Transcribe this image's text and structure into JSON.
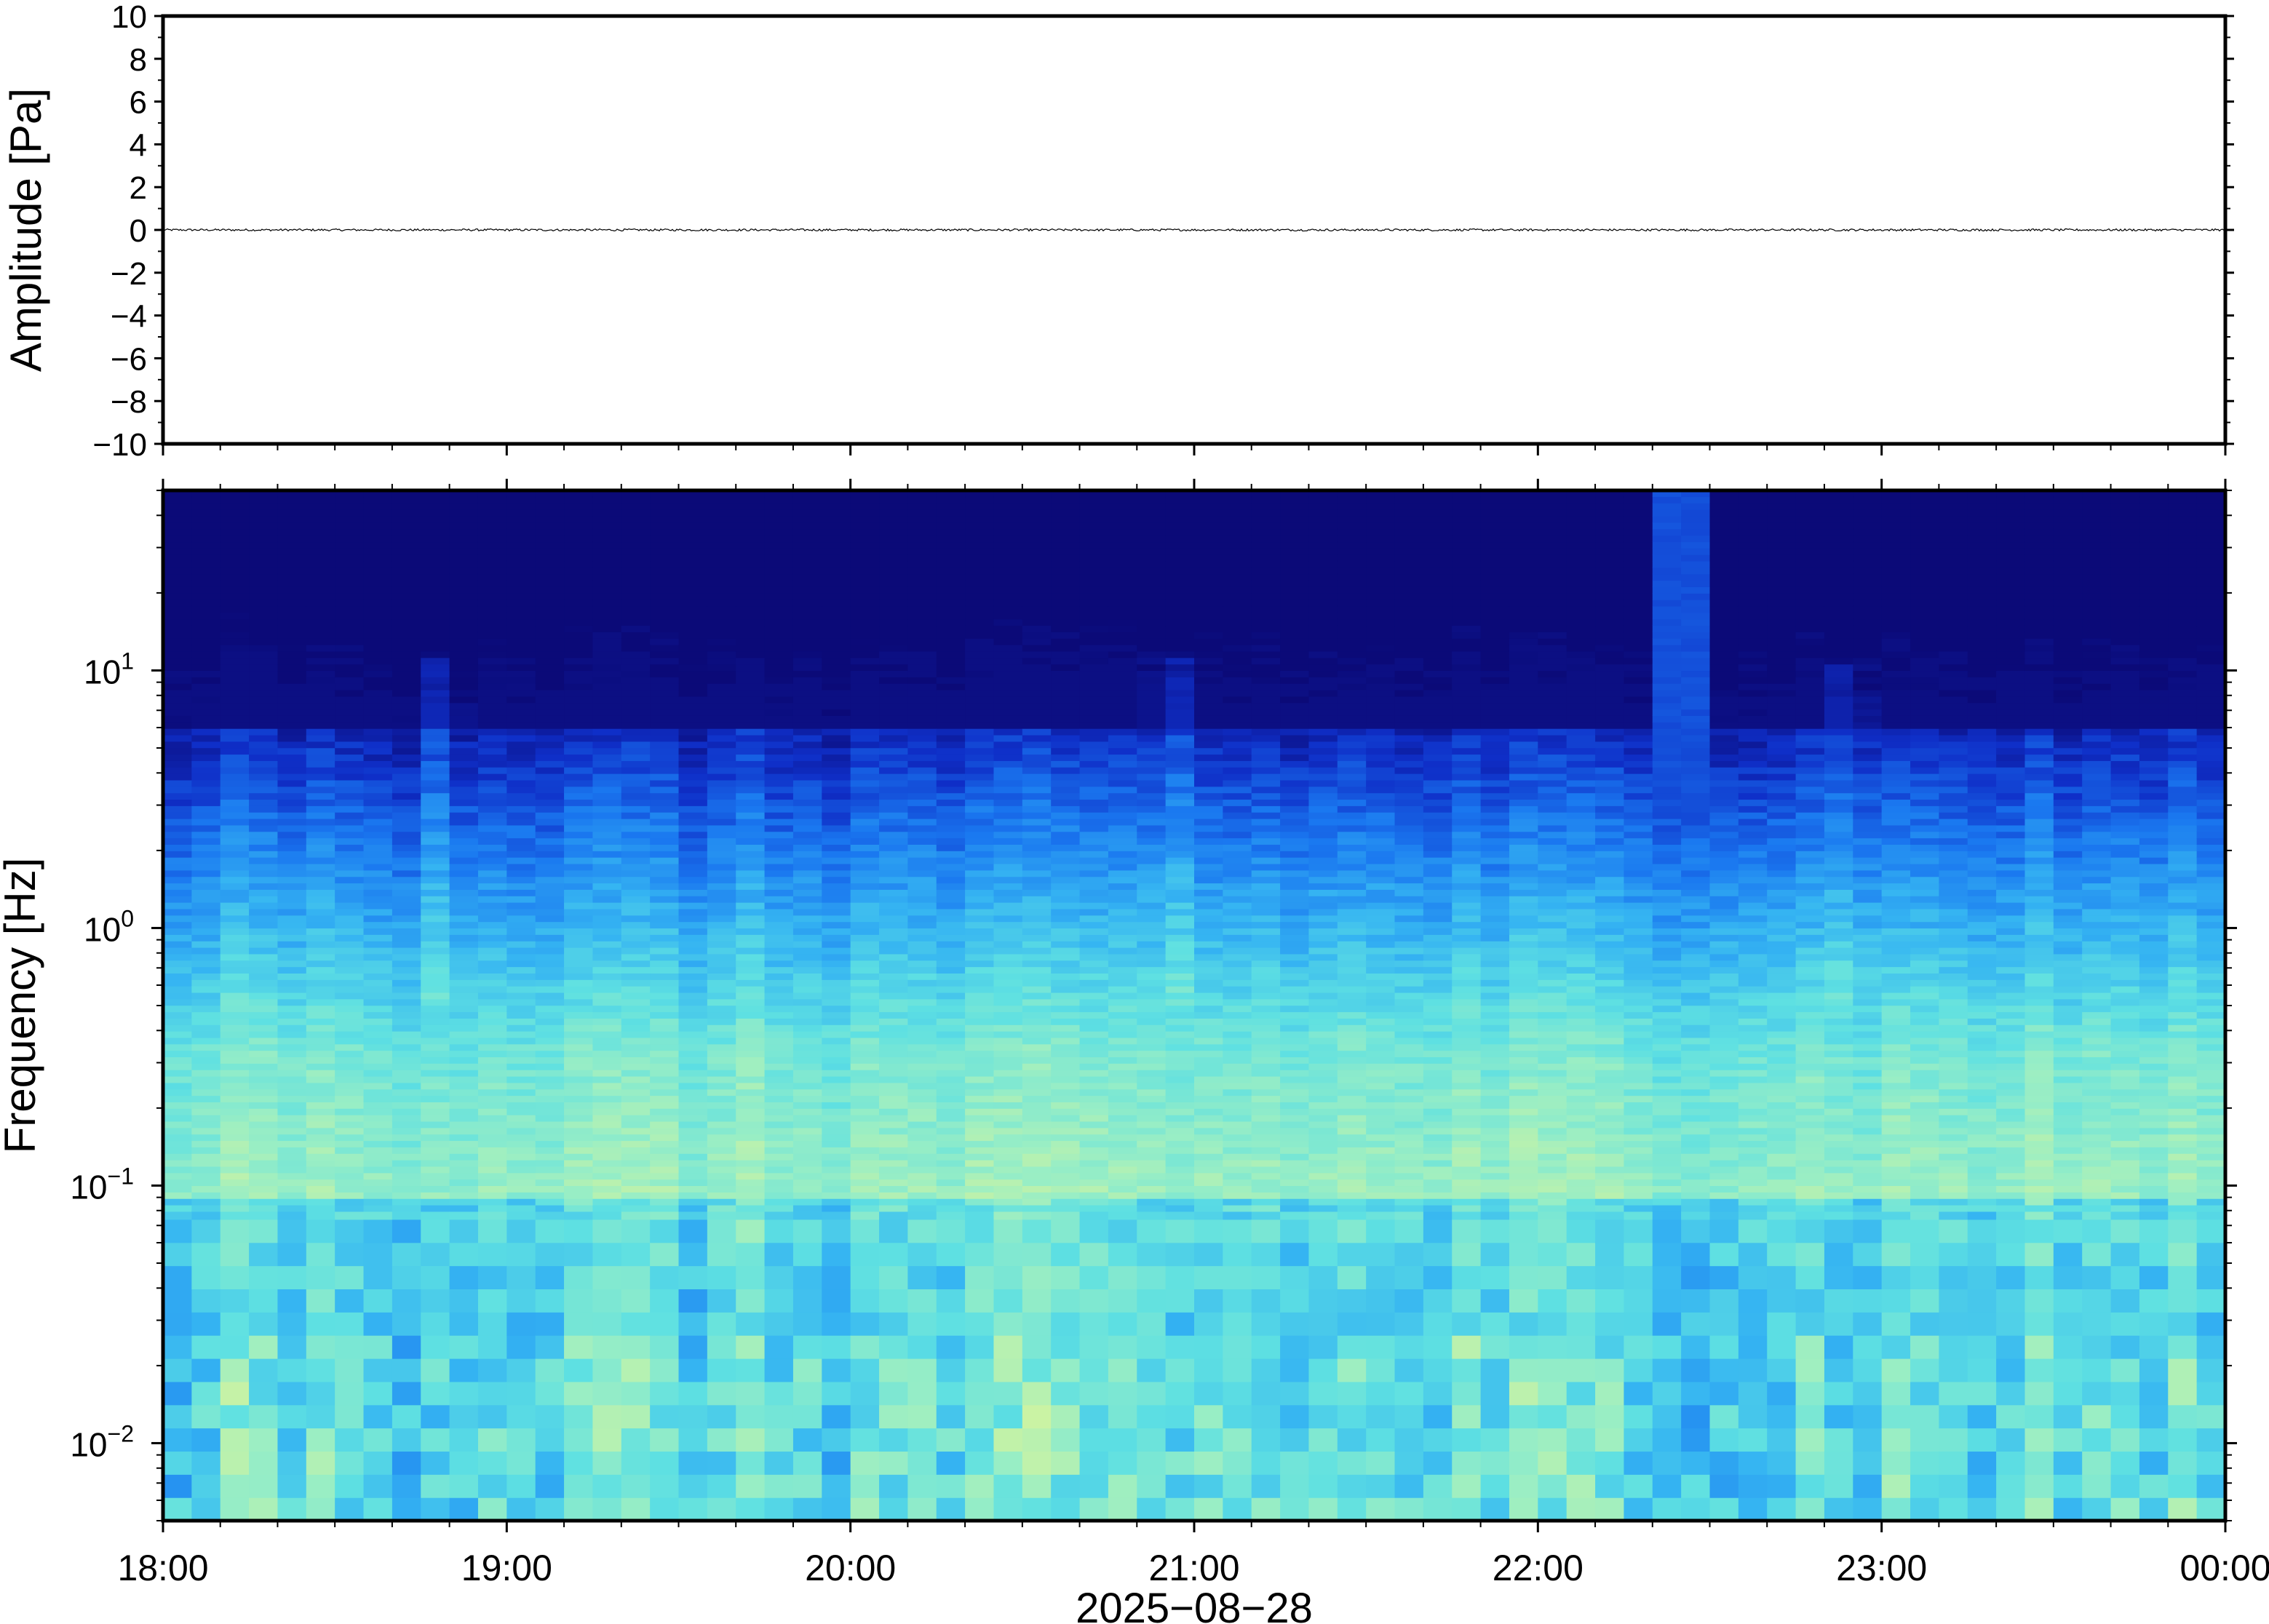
{
  "chart_data": [
    {
      "type": "line",
      "ylabel": "Amplitude [Pa]",
      "ylim": [
        -10,
        10
      ],
      "y_ticks": [
        "10",
        "8",
        "6",
        "4",
        "2",
        "0",
        "−2",
        "−4",
        "−6",
        "−8",
        "−10"
      ],
      "y_tick_values": [
        10,
        8,
        6,
        4,
        2,
        0,
        -2,
        -4,
        -6,
        -8,
        -10
      ],
      "series": [
        {
          "values_summary": "near-zero noise trace for the whole window, |amplitude| well below 0.1 Pa",
          "approx_abs_max": 0.05
        }
      ],
      "color": "#000000",
      "grid": false
    },
    {
      "type": "heatmap",
      "ylabel": "Frequency [Hz]",
      "yscale": "log",
      "ylim_hz": [
        0.005,
        50
      ],
      "y_ticks": [
        {
          "value": 10,
          "base": "10",
          "exp": "1"
        },
        {
          "value": 1,
          "base": "10",
          "exp": "0"
        },
        {
          "value": 0.1,
          "base": "10",
          "exp": "−1"
        },
        {
          "value": 0.01,
          "base": "10",
          "exp": "−2"
        }
      ],
      "x_ticks": [
        "18:00",
        "19:00",
        "20:00",
        "21:00",
        "22:00",
        "23:00",
        "00:00"
      ],
      "x_tick_hours": [
        18,
        19,
        20,
        21,
        22,
        23,
        24
      ],
      "xlabel": "2025−08−28",
      "xlim_hours": [
        18,
        24
      ],
      "colormap": [
        "#0b0a78",
        "#0f2fc8",
        "#1a78f0",
        "#35b4f2",
        "#5ee0e2",
        "#9aeec4",
        "#d8f49a",
        "#f6e070"
      ],
      "features": [
        {
          "hour": 18.8,
          "note": "band reaching ~9 Hz"
        },
        {
          "hour": 20.95,
          "note": "band reaching ~8 Hz"
        },
        {
          "hour": 22.45,
          "note": "strong broadband column reaching top of axis"
        },
        {
          "hour": 22.9,
          "note": "band reaching ~11 Hz"
        }
      ],
      "grid": false
    }
  ]
}
